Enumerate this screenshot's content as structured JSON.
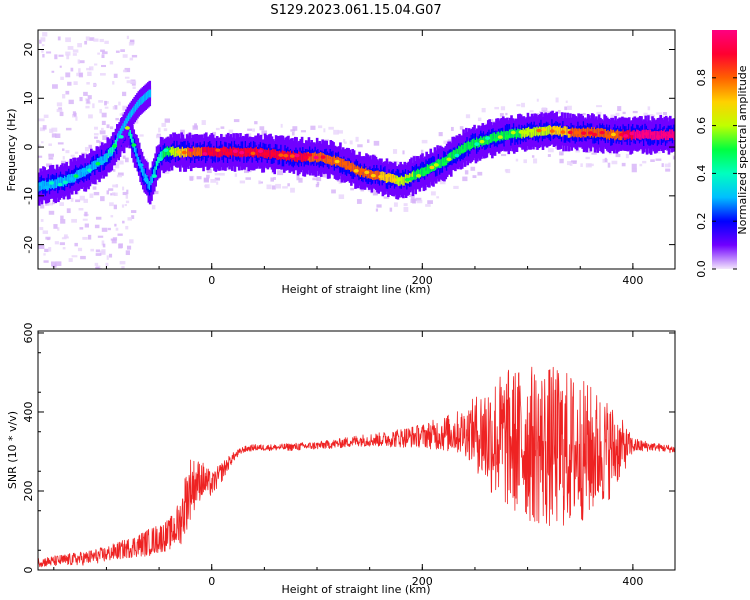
{
  "title": "S129.2023.061.15.04.G07",
  "chart_data": [
    {
      "type": "heatmap",
      "xlabel": "Height of straight line (km)",
      "ylabel": "Frequency (Hz)",
      "xlim": [
        -165,
        440
      ],
      "ylim": [
        -25,
        24
      ],
      "xticks": [
        0,
        200,
        400
      ],
      "yticks": [
        -20,
        -10,
        0,
        10,
        20
      ],
      "colorbar": {
        "label": "Normalized spectral amplitude",
        "ticks": [
          0.0,
          0.2,
          0.4,
          0.6,
          0.8
        ],
        "range": [
          0,
          1
        ],
        "colormap": "rainbow",
        "colors": [
          "#f3e6fb",
          "#7000ff",
          "#0000ff",
          "#00bfff",
          "#00ffbf",
          "#00ff40",
          "#c0ff00",
          "#ffd000",
          "#ff6000",
          "#ff0030",
          "#ff0080"
        ]
      },
      "ridge": {
        "x": [
          -160,
          -140,
          -120,
          -100,
          -90,
          -80,
          -70,
          -60,
          -55,
          -50,
          -45,
          -40,
          -20,
          0,
          20,
          40,
          60,
          80,
          100,
          120,
          140,
          160,
          180,
          200,
          220,
          240,
          260,
          280,
          300,
          320,
          340,
          360,
          380,
          400,
          440
        ],
        "y": [
          -8,
          -7,
          -5,
          -2,
          1,
          4,
          -3,
          -8,
          -5,
          -2,
          -1,
          -1,
          -1,
          -1,
          -1,
          -1,
          -1.5,
          -2,
          -2,
          -3,
          -5,
          -6,
          -7,
          -5,
          -3,
          0,
          1.5,
          2.5,
          3,
          3.5,
          3,
          3,
          2.5,
          2.5,
          2.5
        ],
        "amplitude": [
          0.25,
          0.3,
          0.3,
          0.35,
          0.4,
          0.4,
          0.3,
          0.3,
          0.35,
          0.4,
          0.5,
          0.55,
          0.8,
          0.9,
          0.9,
          0.85,
          0.85,
          0.9,
          0.8,
          0.75,
          0.8,
          0.75,
          0.6,
          0.5,
          0.5,
          0.5,
          0.45,
          0.45,
          0.6,
          0.65,
          0.75,
          0.8,
          0.75,
          0.95,
          0.95
        ]
      },
      "branch": {
        "x": [
          -90,
          -80,
          -70,
          -60
        ],
        "y": [
          2,
          6,
          9,
          11
        ],
        "amplitude": [
          0.3,
          0.3,
          0.3,
          0.3
        ]
      }
    },
    {
      "type": "line",
      "xlabel": "Height of straight line (km)",
      "ylabel": "SNR (10 * v/v)",
      "xlim": [
        -165,
        440
      ],
      "ylim": [
        0,
        605
      ],
      "xticks": [
        0,
        200,
        400
      ],
      "yticks": [
        0,
        200,
        400,
        600
      ],
      "color": "#ee2222",
      "series": [
        {
          "x": [
            -160,
            -140,
            -120,
            -100,
            -80,
            -60,
            -40,
            -30,
            -25,
            -20,
            -15,
            -10,
            0,
            10,
            20,
            30,
            40,
            60,
            80,
            100,
            120,
            140,
            160,
            180,
            200,
            220,
            240,
            250,
            260,
            280,
            300,
            320,
            340,
            360,
            380,
            400,
            420,
            440
          ],
          "y": [
            20,
            25,
            30,
            40,
            55,
            70,
            90,
            120,
            170,
            210,
            220,
            230,
            215,
            250,
            285,
            305,
            310,
            310,
            312,
            315,
            320,
            328,
            330,
            335,
            340,
            345,
            350,
            350,
            340,
            330,
            320,
            310,
            305,
            300,
            305,
            315,
            312,
            305
          ],
          "noise": [
            12,
            15,
            18,
            20,
            25,
            35,
            40,
            60,
            80,
            80,
            60,
            50,
            30,
            25,
            12,
            8,
            8,
            8,
            10,
            10,
            12,
            15,
            18,
            25,
            30,
            45,
            60,
            90,
            140,
            180,
            200,
            210,
            200,
            170,
            120,
            20,
            10,
            10
          ]
        }
      ]
    }
  ]
}
